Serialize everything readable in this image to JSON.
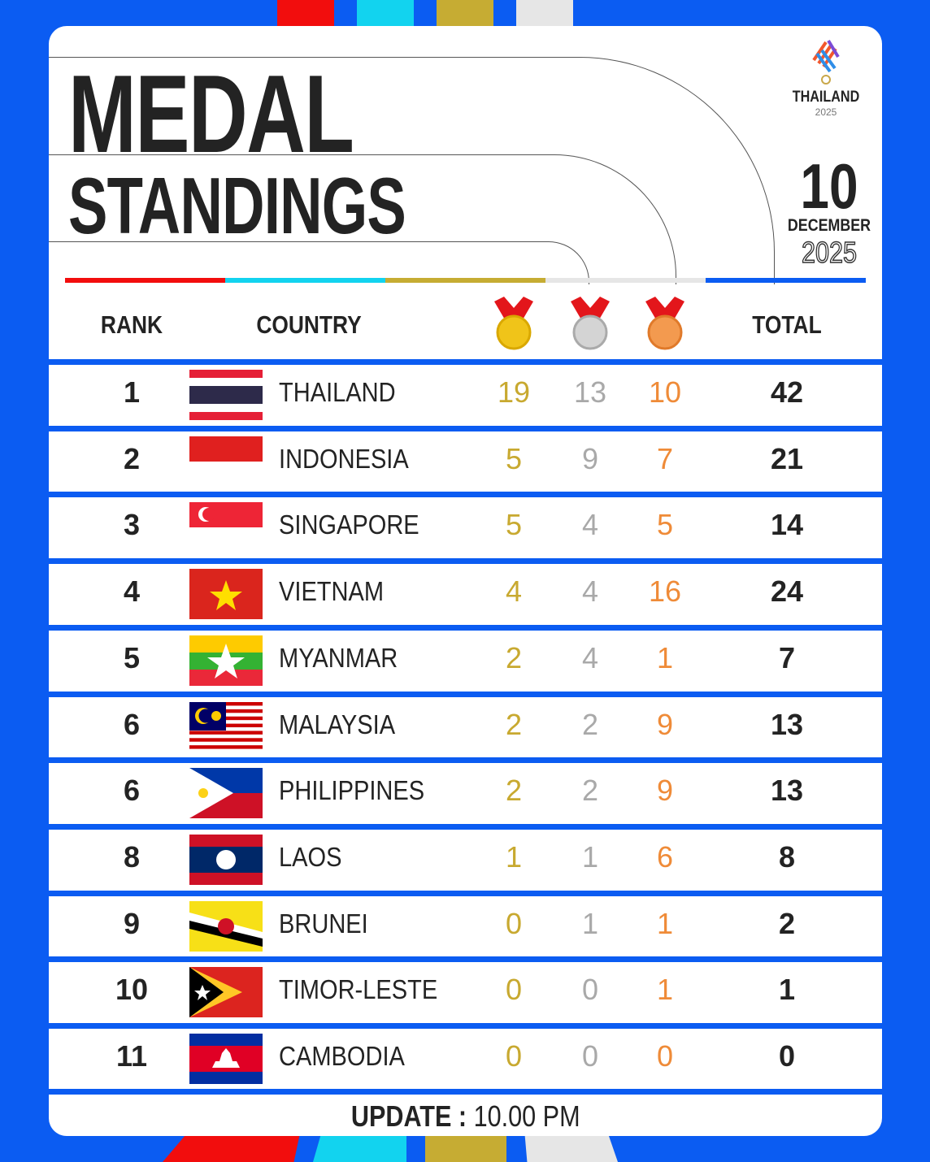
{
  "title": {
    "line1": "MEDAL",
    "line2": "STANDINGS"
  },
  "logo": {
    "text": "THAILAND",
    "year": "2025"
  },
  "date": {
    "day": "10",
    "month": "DECEMBER",
    "year": "2025"
  },
  "headers": {
    "rank": "RANK",
    "country": "COUNTRY",
    "gold_icon": "gold-medal-icon",
    "silver_icon": "silver-medal-icon",
    "bronze_icon": "bronze-medal-icon",
    "total": "TOTAL"
  },
  "colors": {
    "background": "#0b5cf2",
    "gold": "#c8a930",
    "silver": "#a9a9a9",
    "bronze": "#ef8b38",
    "stripes": [
      "#f20d0d",
      "#12d3ef",
      "#c6ac33",
      "#e6e6e6",
      "#0b5cf2"
    ]
  },
  "rows": [
    {
      "rank": "1",
      "country": "THAILAND",
      "flag": "thailand",
      "gold": "19",
      "silver": "13",
      "bronze": "10",
      "total": "42"
    },
    {
      "rank": "2",
      "country": "INDONESIA",
      "flag": "indonesia",
      "gold": "5",
      "silver": "9",
      "bronze": "7",
      "total": "21"
    },
    {
      "rank": "3",
      "country": "SINGAPORE",
      "flag": "singapore",
      "gold": "5",
      "silver": "4",
      "bronze": "5",
      "total": "14"
    },
    {
      "rank": "4",
      "country": "VIETNAM",
      "flag": "vietnam",
      "gold": "4",
      "silver": "4",
      "bronze": "16",
      "total": "24"
    },
    {
      "rank": "5",
      "country": "MYANMAR",
      "flag": "myanmar",
      "gold": "2",
      "silver": "4",
      "bronze": "1",
      "total": "7"
    },
    {
      "rank": "6",
      "country": "MALAYSIA",
      "flag": "malaysia",
      "gold": "2",
      "silver": "2",
      "bronze": "9",
      "total": "13"
    },
    {
      "rank": "6",
      "country": "PHILIPPINES",
      "flag": "philippines",
      "gold": "2",
      "silver": "2",
      "bronze": "9",
      "total": "13"
    },
    {
      "rank": "8",
      "country": "LAOS",
      "flag": "laos",
      "gold": "1",
      "silver": "1",
      "bronze": "6",
      "total": "8"
    },
    {
      "rank": "9",
      "country": "BRUNEI",
      "flag": "brunei",
      "gold": "0",
      "silver": "1",
      "bronze": "1",
      "total": "2"
    },
    {
      "rank": "10",
      "country": "TIMOR-LESTE",
      "flag": "timor-leste",
      "gold": "0",
      "silver": "0",
      "bronze": "1",
      "total": "1"
    },
    {
      "rank": "11",
      "country": "CAMBODIA",
      "flag": "cambodia",
      "gold": "0",
      "silver": "0",
      "bronze": "0",
      "total": "0"
    }
  ],
  "footer": {
    "label": "UPDATE :",
    "time": "10.00 PM"
  }
}
